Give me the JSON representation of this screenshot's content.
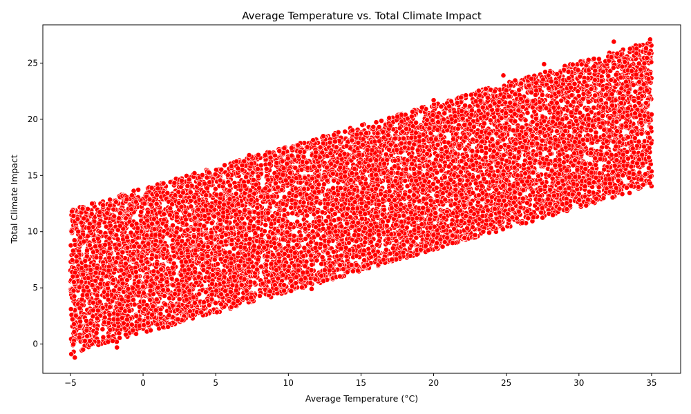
{
  "chart_data": {
    "type": "scatter",
    "title": "Average Temperature vs. Total Climate Impact",
    "xlabel": "Average Temperature (°C)",
    "ylabel": "Total Climate Impact",
    "xlim": [
      -6.9,
      37.0
    ],
    "ylim": [
      -2.6,
      28.4
    ],
    "xticks": [
      -5,
      0,
      5,
      10,
      15,
      20,
      25,
      30,
      35
    ],
    "yticks": [
      0,
      5,
      10,
      15,
      20,
      25
    ],
    "grid": false,
    "legend": "none",
    "marker_color": "#ff0000",
    "marker_edge_color": "#ffffff",
    "series": [
      {
        "color": "#ff0000",
        "distribution": {
          "x_range": [
            -5,
            35
          ],
          "point_count": 10000,
          "lower_line": {
            "x": [
              -5,
              35
            ],
            "y": [
              -1,
              14
            ]
          },
          "upper_line": {
            "x": [
              -5,
              35
            ],
            "y": [
              12,
              27
            ]
          }
        },
        "points": [
          {
            "x": -4.7,
            "y": -1.2
          },
          {
            "x": -1.8,
            "y": -0.3
          },
          {
            "x": 2.4,
            "y": 2.2
          },
          {
            "x": 11.6,
            "y": 4.9
          },
          {
            "x": 15.2,
            "y": 6.9
          },
          {
            "x": 21.3,
            "y": 9.0
          },
          {
            "x": 27.4,
            "y": 11.7
          },
          {
            "x": 34.9,
            "y": 14.3
          },
          {
            "x": -4.9,
            "y": 11.8
          },
          {
            "x": 1.4,
            "y": 14.3
          },
          {
            "x": 7.3,
            "y": 16.8
          },
          {
            "x": 12.4,
            "y": 18.5
          },
          {
            "x": 20.0,
            "y": 21.7
          },
          {
            "x": 24.8,
            "y": 23.9
          },
          {
            "x": 27.6,
            "y": 24.9
          },
          {
            "x": 32.4,
            "y": 26.9
          },
          {
            "x": 34.9,
            "y": 27.1
          }
        ]
      }
    ]
  }
}
